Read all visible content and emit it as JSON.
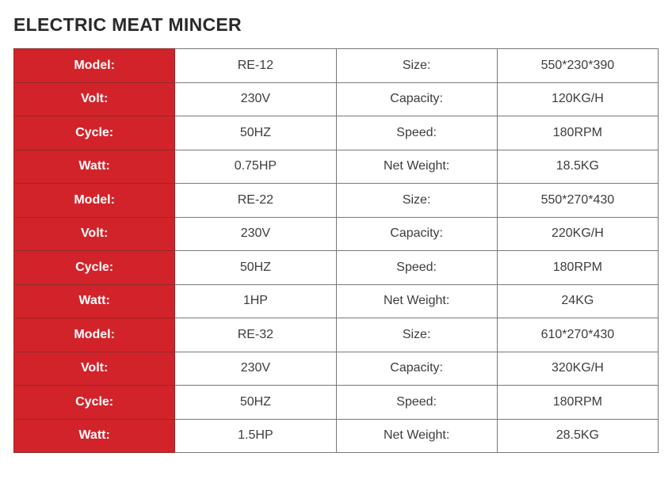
{
  "page": {
    "title": "ELECTRIC MEAT MINCER"
  },
  "colors": {
    "accent_red": "#d2232a",
    "red_border": "#8f2b29",
    "border_gray": "#787878",
    "text_dark": "#3c3c3c",
    "title_color": "#2b2a29",
    "page_bg": "#ffffff"
  },
  "table": {
    "rows": [
      {
        "c0": "Model:",
        "c1": "RE-12",
        "c2": "Size:",
        "c3": "550*230*390"
      },
      {
        "c0": "Volt:",
        "c1": "230V",
        "c2": "Capacity:",
        "c3": "120KG/H"
      },
      {
        "c0": "Cycle:",
        "c1": "50HZ",
        "c2": "Speed:",
        "c3": "180RPM"
      },
      {
        "c0": "Watt:",
        "c1": "0.75HP",
        "c2": "Net Weight:",
        "c3": "18.5KG"
      },
      {
        "c0": "Model:",
        "c1": "RE-22",
        "c2": "Size:",
        "c3": "550*270*430"
      },
      {
        "c0": "Volt:",
        "c1": "230V",
        "c2": "Capacity:",
        "c3": "220KG/H"
      },
      {
        "c0": "Cycle:",
        "c1": "50HZ",
        "c2": "Speed:",
        "c3": "180RPM"
      },
      {
        "c0": "Watt:",
        "c1": "1HP",
        "c2": "Net Weight:",
        "c3": "24KG"
      },
      {
        "c0": "Model:",
        "c1": "RE-32",
        "c2": "Size:",
        "c3": "610*270*430"
      },
      {
        "c0": "Volt:",
        "c1": "230V",
        "c2": "Capacity:",
        "c3": "320KG/H"
      },
      {
        "c0": "Cycle:",
        "c1": "50HZ",
        "c2": "Speed:",
        "c3": "180RPM"
      },
      {
        "c0": "Watt:",
        "c1": "1.5HP",
        "c2": "Net Weight:",
        "c3": "28.5KG"
      }
    ]
  }
}
